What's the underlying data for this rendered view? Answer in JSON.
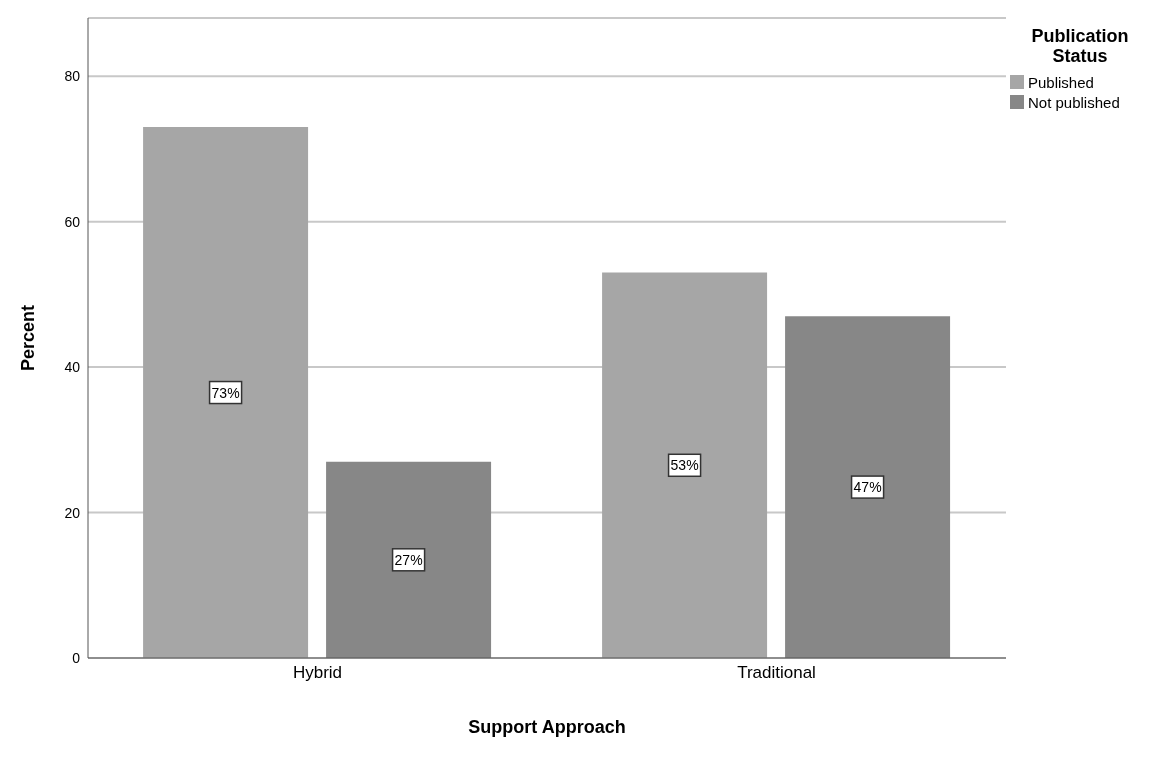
{
  "chart_data": {
    "type": "bar",
    "xlabel": "Support Approach",
    "ylabel": "Percent",
    "legend_title": "Publication Status",
    "categories": [
      "Hybrid",
      "Traditional"
    ],
    "series": [
      {
        "name": "Published",
        "color": "#a6a6a6",
        "values": [
          73,
          53
        ],
        "value_labels": [
          "73%",
          "53%"
        ]
      },
      {
        "name": "Not published",
        "color": "#878787",
        "values": [
          27,
          47
        ],
        "value_labels": [
          "27%",
          "47%"
        ]
      }
    ],
    "ylim": [
      0,
      88
    ],
    "yticks": [
      0,
      20,
      40,
      60,
      80
    ],
    "grid": "y",
    "legend": "top right"
  }
}
